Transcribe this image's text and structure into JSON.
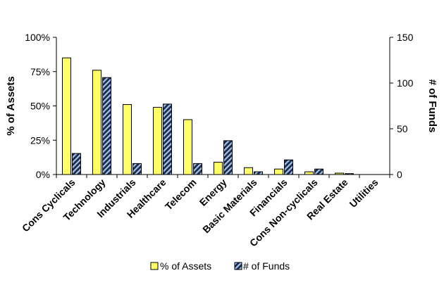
{
  "chart_data": {
    "type": "bar",
    "categories": [
      "Cons Cyclicals",
      "Technology",
      "Industrials",
      "Healthcare",
      "Telecom",
      "Energy",
      "Basic Materials",
      "Financials",
      "Cons Non-cyclicals",
      "Real Estate",
      "Utilities"
    ],
    "series": [
      {
        "name": "% of Assets",
        "axis": "left",
        "color": "#ffff66",
        "pattern": "solid",
        "values": [
          85,
          76,
          51,
          49,
          40,
          9,
          5,
          4,
          2,
          1,
          0
        ]
      },
      {
        "name": "# of Funds",
        "axis": "right",
        "color": "#1f2a4a",
        "stripe_color": "#9fc4e8",
        "pattern": "diagonal-stripes",
        "values": [
          23,
          106,
          12,
          77,
          12,
          37,
          3,
          16,
          6,
          1,
          0
        ]
      }
    ],
    "y_left": {
      "label": "% of Assets",
      "range": [
        0,
        100
      ],
      "ticks": [
        0,
        25,
        50,
        75,
        100
      ],
      "tick_labels": [
        "0%",
        "25%",
        "50%",
        "75%",
        "100%"
      ]
    },
    "y_right": {
      "label": "# of Funds",
      "range": [
        0,
        150
      ],
      "ticks": [
        0,
        50,
        100,
        150
      ],
      "tick_labels": [
        "0",
        "50",
        "100",
        "150"
      ]
    },
    "grid": false,
    "legend_position": "bottom"
  }
}
